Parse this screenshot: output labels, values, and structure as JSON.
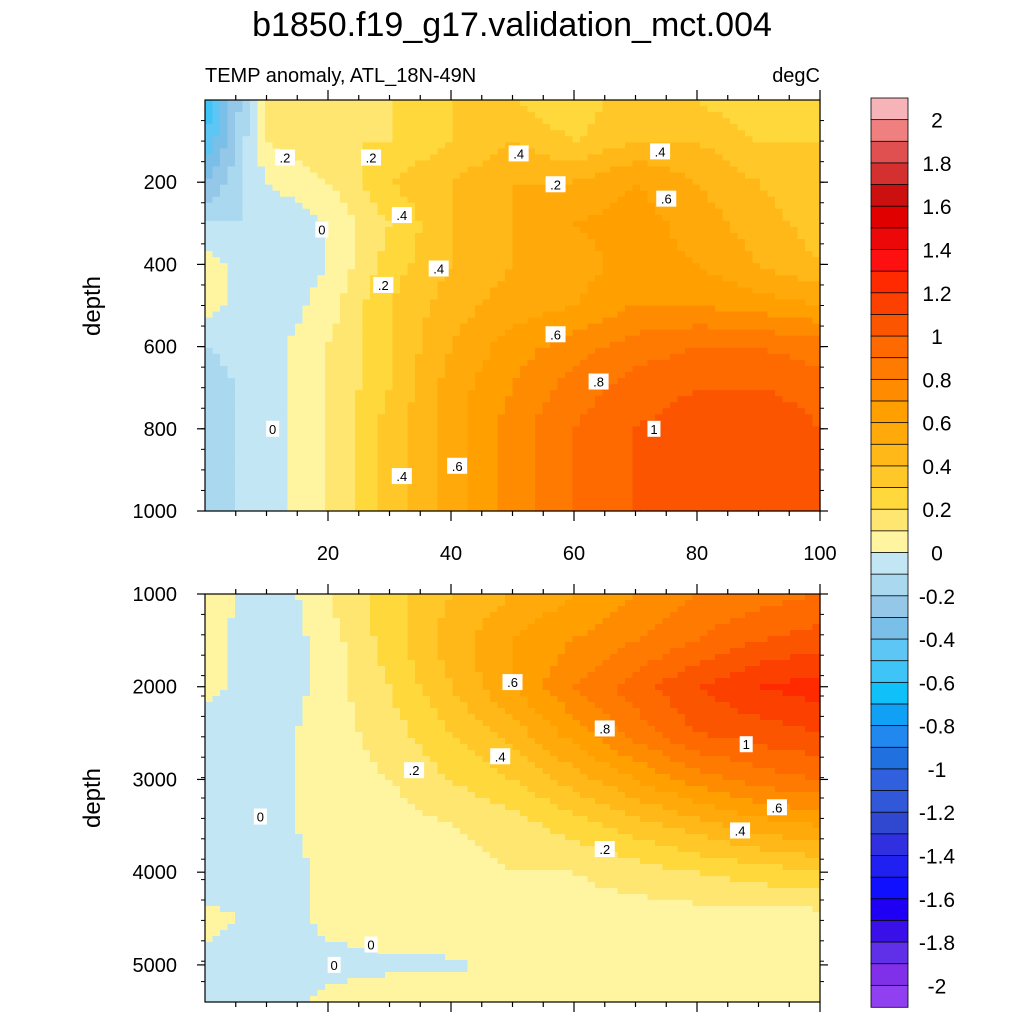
{
  "chart_data": [
    {
      "type": "heatmap",
      "panel": "top",
      "title": "b1850.f19_g17.validation_mct.004",
      "left_string": "TEMP anomaly, ATL_18N-49N",
      "right_string": "degC",
      "xlabel": "",
      "ylabel": "depth",
      "x_ticks": [
        20,
        40,
        60,
        80,
        100
      ],
      "y_ticks": [
        200,
        400,
        600,
        800,
        1000
      ],
      "xlim": [
        0,
        100
      ],
      "ylim": [
        1000,
        0
      ],
      "x": [
        0,
        10,
        20,
        30,
        40,
        50,
        60,
        70,
        80,
        90,
        100
      ],
      "y": [
        0,
        100,
        200,
        300,
        400,
        500,
        600,
        700,
        800,
        900,
        1000
      ],
      "z": [
        [
          -0.6,
          0.1,
          0.2,
          0.2,
          0.3,
          0.3,
          0.2,
          0.4,
          0.3,
          0.2,
          0.2
        ],
        [
          -0.5,
          0.1,
          0.2,
          0.2,
          0.3,
          0.4,
          0.3,
          0.4,
          0.4,
          0.3,
          0.3
        ],
        [
          -0.3,
          0.0,
          0.1,
          0.3,
          0.4,
          0.5,
          0.5,
          0.6,
          0.5,
          0.4,
          0.3
        ],
        [
          -0.1,
          -0.1,
          0.0,
          0.2,
          0.4,
          0.5,
          0.6,
          0.65,
          0.55,
          0.45,
          0.35
        ],
        [
          0.05,
          -0.1,
          0.0,
          0.25,
          0.4,
          0.5,
          0.55,
          0.65,
          0.6,
          0.5,
          0.4
        ],
        [
          0.05,
          -0.1,
          0.05,
          0.3,
          0.45,
          0.55,
          0.6,
          0.7,
          0.7,
          0.65,
          0.6
        ],
        [
          -0.1,
          -0.05,
          0.1,
          0.3,
          0.5,
          0.65,
          0.75,
          0.85,
          0.9,
          0.9,
          0.85
        ],
        [
          -0.15,
          -0.05,
          0.1,
          0.3,
          0.55,
          0.7,
          0.85,
          0.95,
          1.0,
          1.0,
          0.95
        ],
        [
          -0.15,
          -0.05,
          0.1,
          0.35,
          0.55,
          0.75,
          0.9,
          1.0,
          1.05,
          1.1,
          1.0
        ],
        [
          -0.15,
          -0.05,
          0.1,
          0.35,
          0.55,
          0.75,
          0.9,
          1.0,
          1.05,
          1.05,
          1.0
        ],
        [
          -0.15,
          -0.05,
          0.1,
          0.35,
          0.55,
          0.75,
          0.9,
          1.0,
          1.0,
          1.05,
          1.0
        ]
      ],
      "contour_labels": [
        {
          "text": ".2",
          "x": 13,
          "y": 140
        },
        {
          "text": ".2",
          "x": 27,
          "y": 140
        },
        {
          "text": ".4",
          "x": 51,
          "y": 130
        },
        {
          "text": ".2",
          "x": 57,
          "y": 205
        },
        {
          "text": ".4",
          "x": 74,
          "y": 125
        },
        {
          "text": ".6",
          "x": 75,
          "y": 240
        },
        {
          "text": ".4",
          "x": 32,
          "y": 280
        },
        {
          "text": "0",
          "x": 19,
          "y": 315
        },
        {
          "text": ".4",
          "x": 38,
          "y": 410
        },
        {
          "text": ".2",
          "x": 29,
          "y": 450
        },
        {
          "text": ".6",
          "x": 57,
          "y": 570
        },
        {
          "text": ".8",
          "x": 64,
          "y": 685
        },
        {
          "text": "0",
          "x": 11,
          "y": 800
        },
        {
          "text": "1",
          "x": 73,
          "y": 800
        },
        {
          "text": ".6",
          "x": 41,
          "y": 890
        },
        {
          "text": ".4",
          "x": 32,
          "y": 915
        }
      ]
    },
    {
      "type": "heatmap",
      "panel": "bottom",
      "xlabel": "",
      "ylabel": "depth",
      "y_ticks": [
        1000,
        2000,
        3000,
        4000,
        5000
      ],
      "xlim": [
        0,
        100
      ],
      "ylim": [
        5400,
        1000
      ],
      "x": [
        0,
        10,
        20,
        30,
        40,
        50,
        60,
        70,
        80,
        90,
        100
      ],
      "y": [
        1000,
        1500,
        2000,
        2500,
        3000,
        3500,
        4000,
        4500,
        5000,
        5400
      ],
      "z": [
        [
          0.1,
          -0.1,
          0.1,
          0.25,
          0.4,
          0.5,
          0.6,
          0.7,
          0.8,
          0.85,
          0.9
        ],
        [
          0.05,
          -0.1,
          0.05,
          0.25,
          0.45,
          0.6,
          0.7,
          0.8,
          0.9,
          1.0,
          1.05
        ],
        [
          0.05,
          -0.1,
          0.05,
          0.2,
          0.4,
          0.6,
          0.8,
          0.95,
          1.1,
          1.2,
          1.25
        ],
        [
          -0.1,
          -0.05,
          0.05,
          0.15,
          0.3,
          0.45,
          0.65,
          0.85,
          1.0,
          1.05,
          1.1
        ],
        [
          -0.1,
          -0.05,
          0.05,
          0.1,
          0.2,
          0.3,
          0.45,
          0.6,
          0.75,
          0.85,
          0.9
        ],
        [
          -0.1,
          -0.05,
          0.05,
          0.05,
          0.1,
          0.15,
          0.25,
          0.35,
          0.45,
          0.55,
          0.6
        ],
        [
          -0.1,
          -0.05,
          0.02,
          0.05,
          0.05,
          0.1,
          0.1,
          0.15,
          0.2,
          0.25,
          0.3
        ],
        [
          0.05,
          -0.05,
          0.02,
          0.03,
          0.05,
          0.05,
          0.05,
          0.05,
          0.05,
          0.05,
          0.05
        ],
        [
          -0.05,
          -0.05,
          -0.02,
          -0.01,
          -0.01,
          0.02,
          0.03,
          0.03,
          0.03,
          0.03,
          0.03
        ],
        [
          -0.05,
          -0.05,
          0.02,
          0.03,
          0.03,
          0.03,
          0.03,
          0.03,
          0.03,
          0.05,
          0.05
        ]
      ],
      "contour_labels": [
        {
          "text": ".6",
          "x": 50,
          "y": 1950
        },
        {
          "text": ".8",
          "x": 65,
          "y": 2450
        },
        {
          "text": "1",
          "x": 88,
          "y": 2620
        },
        {
          "text": ".4",
          "x": 48,
          "y": 2750
        },
        {
          "text": ".2",
          "x": 34,
          "y": 2900
        },
        {
          "text": ".6",
          "x": 93,
          "y": 3300
        },
        {
          "text": ".4",
          "x": 87,
          "y": 3550
        },
        {
          "text": "0",
          "x": 9,
          "y": 3400
        },
        {
          "text": ".2",
          "x": 65,
          "y": 3750
        },
        {
          "text": "0",
          "x": 27,
          "y": 4780
        },
        {
          "text": "0",
          "x": 21,
          "y": 5000
        }
      ]
    }
  ],
  "colorbar": {
    "labels": [
      "2",
      "1.8",
      "1.6",
      "1.4",
      "1.2",
      "1",
      "0.8",
      "0.6",
      "0.4",
      "0.2",
      "0",
      "-0.2",
      "-0.4",
      "-0.6",
      "-0.8",
      "-1",
      "-1.2",
      "-1.4",
      "-1.6",
      "-1.8",
      "-2"
    ],
    "label_values": [
      2,
      1.8,
      1.6,
      1.4,
      1.2,
      1,
      0.8,
      0.6,
      0.4,
      0.2,
      0,
      -0.2,
      -0.4,
      -0.6,
      -0.8,
      -1,
      -1.2,
      -1.4,
      -1.6,
      -1.8,
      -2
    ],
    "boundaries": [
      2.1,
      2.0,
      1.9,
      1.8,
      1.7,
      1.6,
      1.5,
      1.4,
      1.3,
      1.2,
      1.1,
      1.0,
      0.9,
      0.8,
      0.7,
      0.6,
      0.5,
      0.4,
      0.3,
      0.2,
      0.1,
      0.0,
      -0.1,
      -0.2,
      -0.3,
      -0.4,
      -0.5,
      -0.6,
      -0.7,
      -0.8,
      -0.9,
      -1.0,
      -1.1,
      -1.2,
      -1.3,
      -1.4,
      -1.5,
      -1.6,
      -1.7,
      -1.8,
      -1.9,
      -2.0,
      -2.1
    ],
    "colors": [
      "#f7b4b8",
      "#f08080",
      "#e05050",
      "#d43030",
      "#cc1010",
      "#e00000",
      "#ec0808",
      "#ff1010",
      "#ff2a00",
      "#fc4000",
      "#fc5500",
      "#ff6a00",
      "#ff7a00",
      "#ff8c00",
      "#ffa000",
      "#ffaa0a",
      "#ffb818",
      "#ffc828",
      "#ffd83c",
      "#ffe670",
      "#fff5a0",
      "#c3e6f5",
      "#a9d8ef",
      "#95c8e8",
      "#7abfe8",
      "#5ec6f5",
      "#3ec4f7",
      "#10c0f8",
      "#10a0f5",
      "#2088ee",
      "#2070e0",
      "#3060dd",
      "#3058d8",
      "#3048d0",
      "#3030e0",
      "#2020f0",
      "#1010ff",
      "#2000f5",
      "#3a10e8",
      "#6030e8",
      "#8030e8",
      "#9040f0"
    ]
  }
}
